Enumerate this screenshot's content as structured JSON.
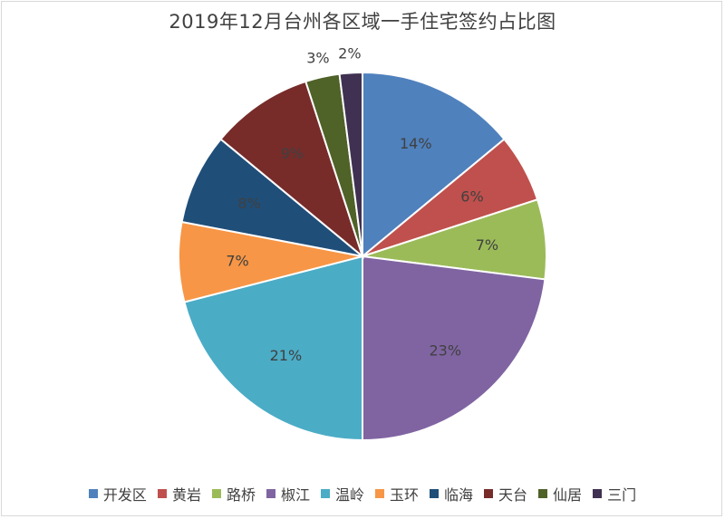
{
  "chart_data": {
    "type": "pie",
    "title": "2019年12月台州各区域一手住宅签约占比图",
    "categories": [
      "开发区",
      "黄岩",
      "路桥",
      "椒江",
      "温岭",
      "玉环",
      "临海",
      "天台",
      "仙居",
      "三门"
    ],
    "values": [
      14,
      6,
      7,
      23,
      21,
      7,
      8,
      9,
      3,
      2
    ],
    "labels": [
      "14%",
      "6%",
      "7%",
      "23%",
      "21%",
      "7%",
      "8%",
      "9%",
      "3%",
      "2%"
    ],
    "colors": [
      "#4f81bd",
      "#c0504d",
      "#9bbb59",
      "#8064a2",
      "#4bacc6",
      "#f79646",
      "#1f4e79",
      "#772c2a",
      "#4f6228",
      "#403152"
    ],
    "legend_position": "bottom"
  }
}
